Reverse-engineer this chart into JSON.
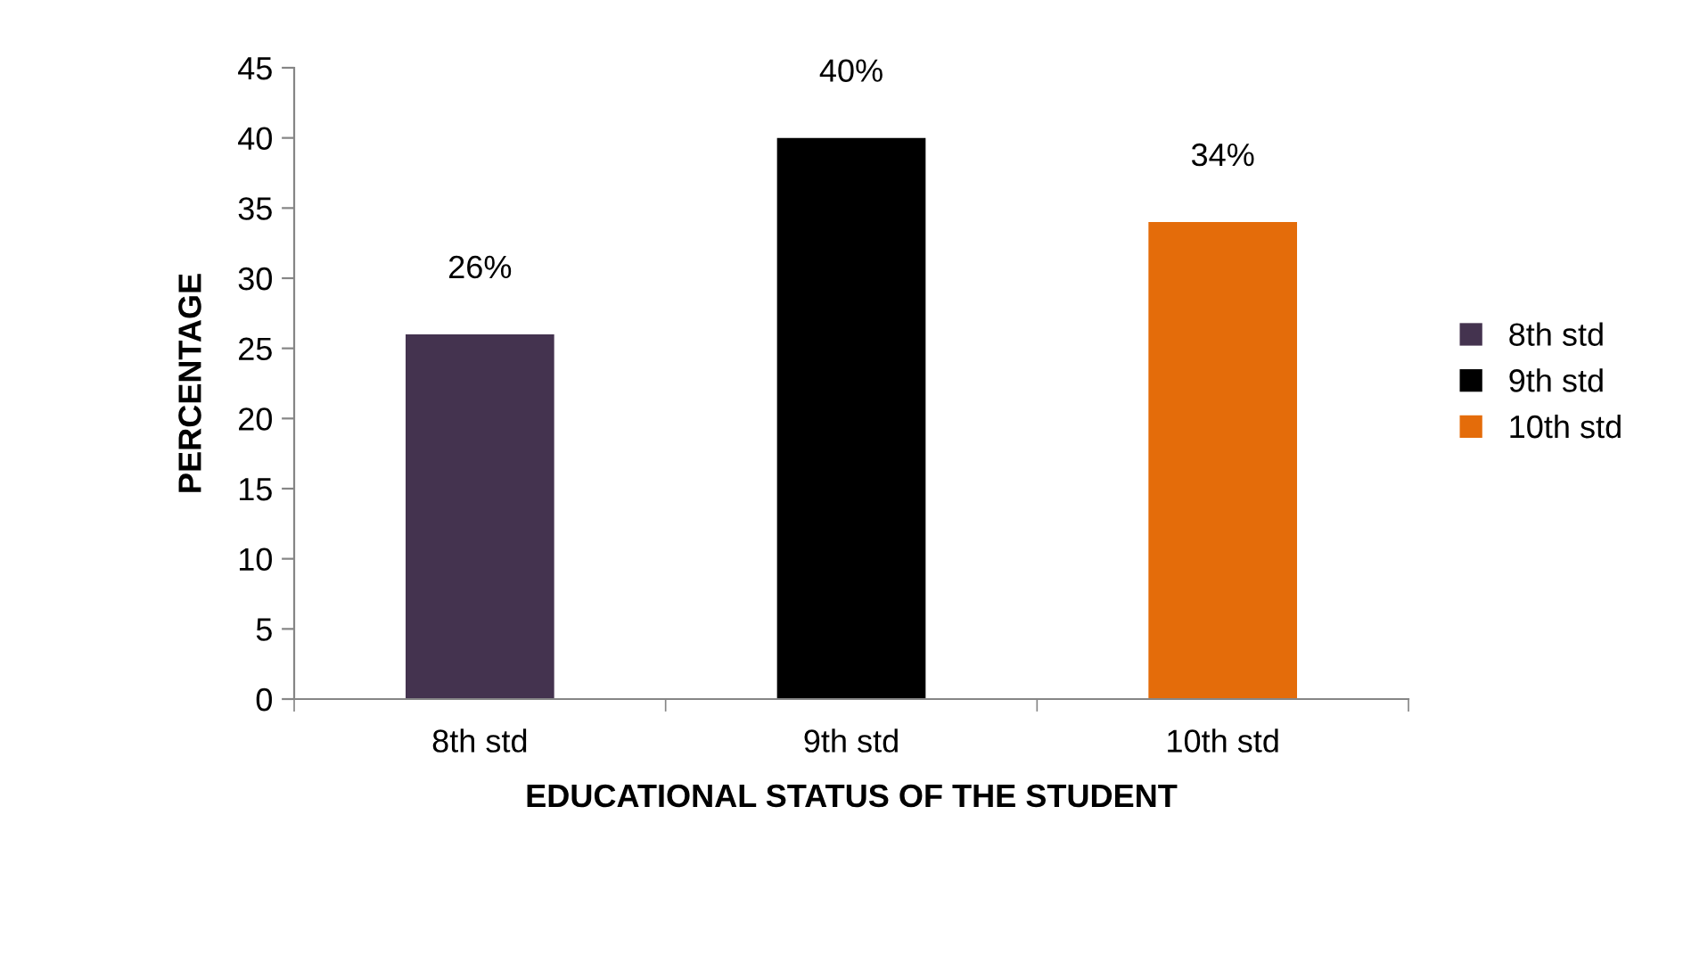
{
  "chart_data": {
    "type": "bar",
    "xlabel": "EDUCATIONAL STATUS OF THE STUDENT",
    "ylabel": "PERCENTAGE",
    "categories": [
      "8th std",
      "9th std",
      "10th std"
    ],
    "series": [
      {
        "name": "8th std",
        "color": "#44334f",
        "values": [
          26,
          null,
          null
        ],
        "value_labels": [
          "26%",
          null,
          null
        ]
      },
      {
        "name": "9th std",
        "color": "#000000",
        "values": [
          null,
          40,
          null
        ],
        "value_labels": [
          null,
          "40%",
          null
        ]
      },
      {
        "name": "10th std",
        "color": "#e46c0a",
        "values": [
          null,
          null,
          34
        ],
        "value_labels": [
          null,
          null,
          "34%"
        ]
      }
    ],
    "ylim": [
      0,
      45
    ],
    "yticks": [
      0,
      5,
      10,
      15,
      20,
      25,
      30,
      35,
      40,
      45
    ],
    "grid": false,
    "legend": "right"
  }
}
